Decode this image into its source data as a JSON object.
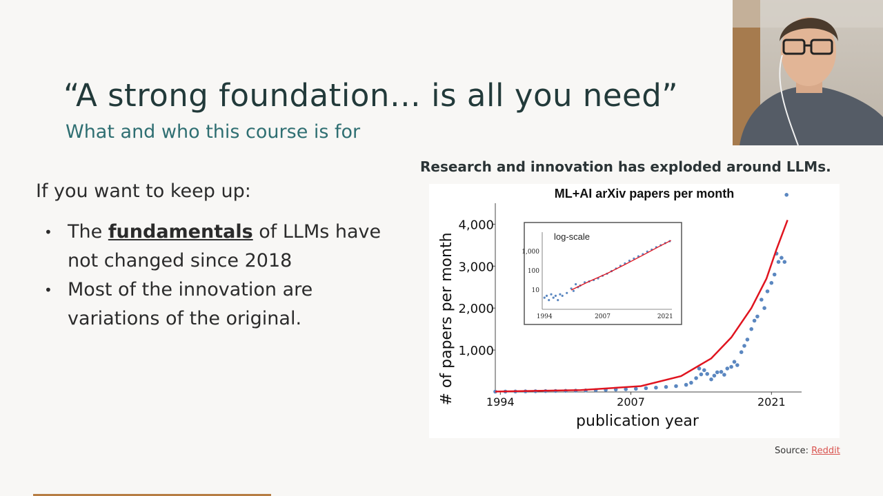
{
  "slide": {
    "title": "“A strong foundation… is all you need”",
    "subtitle": "What and who this course is for",
    "intro": "If you want to keep up:",
    "bullets": [
      {
        "pre": "The ",
        "keyword": "fundamentals",
        "post": " of LLMs have not changed since 2018"
      },
      {
        "pre": "Most of the innovation are variations of the original.",
        "keyword": "",
        "post": ""
      }
    ],
    "chart_heading": "Research and innovation has exploded around LLMs.",
    "source_label": "Source: ",
    "source_link": "Reddit"
  },
  "colors": {
    "title": "#223a3a",
    "subtitle": "#2f6f72",
    "points": "#5b87c0",
    "fit_line": "#e0141f",
    "link": "#d9534f"
  },
  "chart_data": [
    {
      "type": "scatter",
      "title": "ML+AI arXiv papers per month",
      "xlabel": "publication year",
      "ylabel": "# of papers per month",
      "x_ticks": [
        "1994",
        "2007",
        "2021"
      ],
      "y_ticks": [
        "1,000",
        "2,000",
        "3,000",
        "4,000"
      ],
      "xlim": [
        1993.5,
        2024.0
      ],
      "ylim": [
        0,
        4500
      ],
      "grid": false,
      "series": [
        {
          "points": [
            [
              1993.5,
              8
            ],
            [
              1994.5,
              10
            ],
            [
              1995.5,
              12
            ],
            [
              1996.5,
              15
            ],
            [
              1997.5,
              18
            ],
            [
              1998.5,
              22
            ],
            [
              1999.5,
              25
            ],
            [
              2000.5,
              28
            ],
            [
              2001.5,
              32
            ],
            [
              2002.5,
              38
            ],
            [
              2003.5,
              44
            ],
            [
              2004.5,
              50
            ],
            [
              2005.5,
              58
            ],
            [
              2006.5,
              66
            ],
            [
              2007.5,
              76
            ],
            [
              2008.5,
              90
            ],
            [
              2009.5,
              104
            ],
            [
              2010.5,
              120
            ],
            [
              2011.5,
              140
            ],
            [
              2012.5,
              170
            ],
            [
              2013.0,
              220
            ],
            [
              2013.5,
              330
            ],
            [
              2013.8,
              560
            ],
            [
              2014.0,
              420
            ],
            [
              2014.3,
              520
            ],
            [
              2014.6,
              430
            ],
            [
              2015.0,
              300
            ],
            [
              2015.3,
              390
            ],
            [
              2015.6,
              470
            ],
            [
              2016.0,
              480
            ],
            [
              2016.3,
              410
            ],
            [
              2016.6,
              560
            ],
            [
              2017.0,
              600
            ],
            [
              2017.3,
              720
            ],
            [
              2017.6,
              640
            ],
            [
              2018.0,
              950
            ],
            [
              2018.3,
              1100
            ],
            [
              2018.6,
              1250
            ],
            [
              2019.0,
              1500
            ],
            [
              2019.3,
              1700
            ],
            [
              2019.6,
              1800
            ],
            [
              2020.0,
              2200
            ],
            [
              2020.3,
              2000
            ],
            [
              2020.6,
              2400
            ],
            [
              2021.0,
              2600
            ],
            [
              2021.3,
              2800
            ],
            [
              2021.5,
              3300
            ],
            [
              2021.7,
              3100
            ],
            [
              2022.0,
              3200
            ],
            [
              2022.3,
              3100
            ],
            [
              2022.5,
              4700
            ]
          ]
        },
        {
          "fit": [
            [
              1993.5,
              10
            ],
            [
              2002,
              45
            ],
            [
              2008,
              140
            ],
            [
              2012,
              380
            ],
            [
              2015,
              800
            ],
            [
              2017,
              1300
            ],
            [
              2019,
              2000
            ],
            [
              2020.5,
              2700
            ],
            [
              2021.5,
              3400
            ],
            [
              2022.6,
              4100
            ]
          ]
        }
      ]
    },
    {
      "type": "scatter",
      "title": "log-scale",
      "x_ticks": [
        "1994",
        "2007",
        "2021"
      ],
      "y_ticks": [
        "10",
        "100",
        "1,000"
      ],
      "xlim": [
        1993.5,
        2022.5
      ],
      "ylim": [
        1,
        10000
      ],
      "log_y": true,
      "series": [
        {
          "points": [
            [
              1994,
              4
            ],
            [
              1994.5,
              5
            ],
            [
              1995,
              3
            ],
            [
              1995.5,
              6
            ],
            [
              1996,
              4
            ],
            [
              1996.5,
              5
            ],
            [
              1997,
              3
            ],
            [
              1997.5,
              6
            ],
            [
              1998,
              5
            ],
            [
              1999,
              7
            ],
            [
              2000,
              12
            ],
            [
              2000.5,
              9
            ],
            [
              2001,
              20
            ],
            [
              2001.5,
              14
            ],
            [
              2002,
              17
            ],
            [
              2003,
              25
            ],
            [
              2004,
              28
            ],
            [
              2005,
              33
            ],
            [
              2006,
              40
            ],
            [
              2007,
              55
            ],
            [
              2008,
              70
            ],
            [
              2009,
              95
            ],
            [
              2010,
              130
            ],
            [
              2011,
              180
            ],
            [
              2012,
              240
            ],
            [
              2013,
              330
            ],
            [
              2014,
              430
            ],
            [
              2015,
              560
            ],
            [
              2016,
              720
            ],
            [
              2017,
              980
            ],
            [
              2018,
              1250
            ],
            [
              2019,
              1650
            ],
            [
              2020,
              2100
            ],
            [
              2021,
              2700
            ],
            [
              2022,
              3400
            ]
          ]
        },
        {
          "fit": [
            [
              2000,
              10
            ],
            [
              2004,
              28
            ],
            [
              2008,
              72
            ],
            [
              2012,
              210
            ],
            [
              2016,
              640
            ],
            [
              2020,
              2000
            ],
            [
              2022.3,
              3700
            ]
          ]
        }
      ]
    }
  ]
}
